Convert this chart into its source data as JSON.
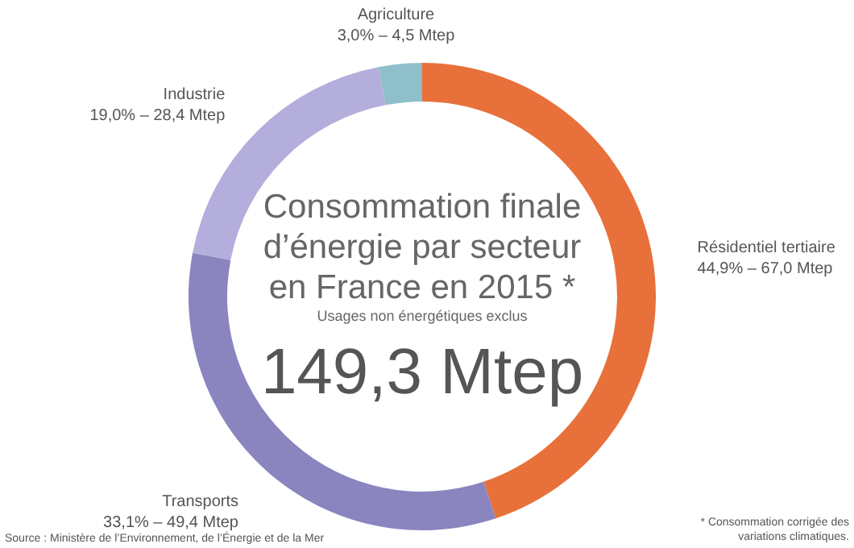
{
  "chart_data": {
    "type": "donut",
    "title": "Consommation finale d’énergie par secteur en France en 2015 *",
    "subtitle": "Usages non énergétiques exclus",
    "categories": [
      "Résidentiel tertiaire",
      "Transports",
      "Industrie",
      "Agriculture"
    ],
    "values": [
      44.9,
      33.1,
      19.0,
      3.0
    ],
    "value_labels": [
      "44,9% – 67,0 Mtep",
      "33,1% – 49,4 Mtep",
      "19,0% – 28,4 Mtep",
      "3,0% – 4,5 Mtep"
    ],
    "colors": [
      "#e8703a",
      "#8a84bf",
      "#b3aedb",
      "#8fbfca"
    ],
    "annotations": [
      "149,3 Mtep",
      "Source : Ministère de l’Environnement, de l’Énergie et de la Mer",
      "* Consommation corrigée des variations climatiques."
    ]
  }
}
